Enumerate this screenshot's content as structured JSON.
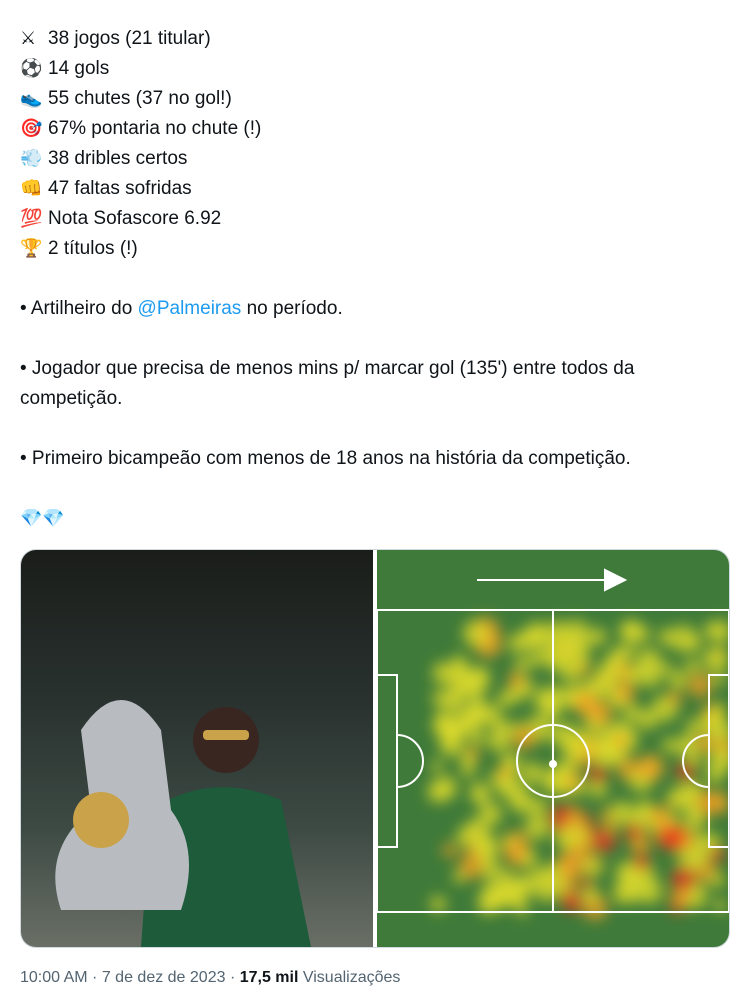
{
  "stats": [
    {
      "icon": "crossed-swords-icon",
      "glyph": "⚔",
      "text": "38 jogos (21 titular)"
    },
    {
      "icon": "soccer-ball-icon",
      "glyph": "⚽",
      "text": "14 gols"
    },
    {
      "icon": "sneaker-icon",
      "glyph": "👟",
      "text": "55 chutes (37 no gol!)"
    },
    {
      "icon": "target-icon",
      "glyph": "🎯",
      "text": "67% pontaria no chute (!)"
    },
    {
      "icon": "dash-icon",
      "glyph": "💨",
      "text": "38 dribles certos"
    },
    {
      "icon": "fist-icon",
      "glyph": "👊",
      "text": "47 faltas sofridas"
    },
    {
      "icon": "hundred-icon",
      "glyph": "💯",
      "text": "Nota Sofascore 6.92"
    },
    {
      "icon": "trophy-icon",
      "glyph": "🏆",
      "text": "2 títulos (!)"
    }
  ],
  "p1": {
    "pre": "• Artilheiro do ",
    "mention": "@Palmeiras",
    "post": " no período."
  },
  "p2": "• Jogador que precisa de menos mins p/ marcar gol (135') entre todos da competição.",
  "p3": "• Primeiro bicampeão com menos de 18 anos na história da competição.",
  "p4": "💎💎",
  "meta": {
    "time": "10:00 AM",
    "sep": " · ",
    "date": "7 de dez de 2023",
    "views_count": "17,5 mil",
    "views_label": " Visualizações"
  },
  "colors": {
    "link": "#1d9bf0",
    "pitch": "#3f7a3a"
  }
}
